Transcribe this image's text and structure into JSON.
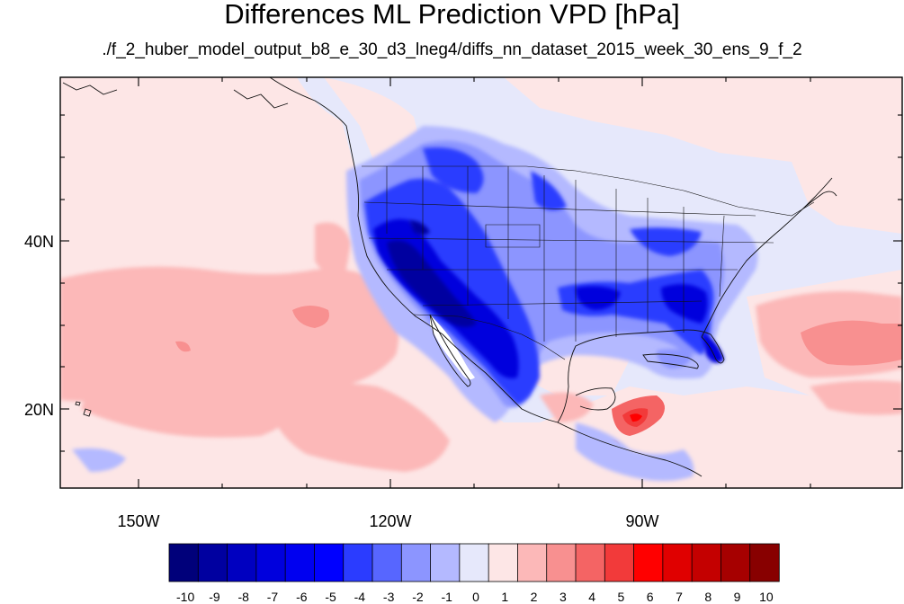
{
  "title": "Differences ML Prediction VPD [hPa]",
  "subtitle": "./f_2_huber_model_output_b8_e_30_d3_lneg4/diffs_nn_dataset_2015_week_30_ens_9_f_2",
  "axes": {
    "lon_labels": [
      "150W",
      "120W",
      "90W"
    ],
    "lat_labels": [
      "40N",
      "20N"
    ]
  },
  "colorbar": {
    "labels": [
      "-10",
      "-9",
      "-8",
      "-7",
      "-6",
      "-5",
      "-4",
      "-3",
      "-2",
      "-1",
      "0",
      "1",
      "2",
      "3",
      "4",
      "5",
      "6",
      "7",
      "8",
      "9",
      "10"
    ],
    "colors": [
      "#00007a",
      "#0000a0",
      "#0000c0",
      "#0000dd",
      "#0000f0",
      "#0000ff",
      "#2b3cff",
      "#5766ff",
      "#8c95ff",
      "#b4b9ff",
      "#e6e8fb",
      "#fde6e6",
      "#fcb8b8",
      "#f89090",
      "#f46464",
      "#f23a3a",
      "#ff0000",
      "#e00000",
      "#c40000",
      "#a60000",
      "#880000"
    ]
  },
  "map": {
    "background_color": "#e6e8fb"
  }
}
